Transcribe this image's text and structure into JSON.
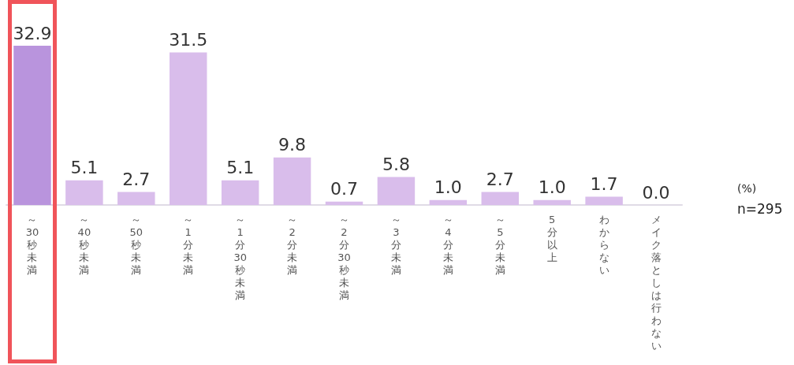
{
  "chart_data": {
    "type": "bar",
    "categories": [
      "～30秒未満",
      "～40秒未満",
      "～50秒未満",
      "～1分未満",
      "～1分30秒未満",
      "～2分未満",
      "～2分30秒未満",
      "～3分未満",
      "～4分未満",
      "～5分未満",
      "5分以上",
      "わからない",
      "メイク落としは行わない"
    ],
    "values": [
      32.9,
      5.1,
      2.7,
      31.5,
      5.1,
      9.8,
      0.7,
      5.8,
      1.0,
      2.7,
      1.0,
      1.7,
      0.0
    ],
    "value_labels": [
      "32.9",
      "5.1",
      "2.7",
      "31.5",
      "5.1",
      "9.8",
      "0.7",
      "5.8",
      "1.0",
      "2.7",
      "1.0",
      "1.7",
      "0.0"
    ],
    "colors": [
      "#b994dd",
      "#d9bdeb",
      "#d9bdeb",
      "#d9bdeb",
      "#d9bdeb",
      "#d9bdeb",
      "#d9bdeb",
      "#d9bdeb",
      "#d9bdeb",
      "#d9bdeb",
      "#d9bdeb",
      "#d9bdeb",
      "#d9bdeb"
    ],
    "annotations": [
      "(%)",
      "n=295"
    ]
  }
}
